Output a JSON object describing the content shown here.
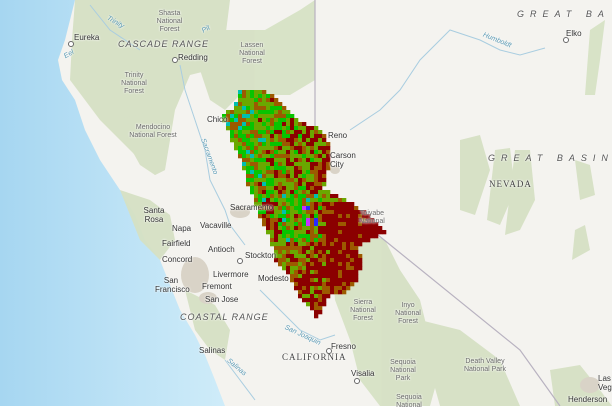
{
  "map": {
    "basemap": "topographic",
    "colors": {
      "ocean_deep": "#a9d8f2",
      "ocean_shallow": "#cdeaf8",
      "land": "#f4f3ef",
      "forest": "#d3dfc0",
      "state_line": "#b5b0bd",
      "river": "#a9cde0",
      "urban": "#d8d2c6"
    },
    "raster_palette": [
      "#8b0000",
      "#9c5a00",
      "#6aa800",
      "#08c400",
      "#00bfb0",
      "#1a80e0",
      "#2a2aff",
      "#c830ff"
    ],
    "labels": {
      "eureka": "Eureka",
      "redding": "Redding",
      "chico": "Chico",
      "reno": "Reno",
      "carson": "Carson City",
      "elko": "Elko",
      "santa_rosa": "Santa Rosa",
      "napa": "Napa",
      "vacaville": "Vacaville",
      "fairfield": "Fairfield",
      "sacramento": "Sacramento",
      "antioch": "Antioch",
      "concord": "Concord",
      "stockton": "Stockton",
      "san_francisco": "San Francisco",
      "livermore": "Livermore",
      "fremont": "Fremont",
      "modesto": "Modesto",
      "san_jose": "San Jose",
      "salinas": "Salinas",
      "fresno": "Fresno",
      "visalia": "Visalia",
      "henderson": "Henderson",
      "las_vegas": "Las Vegas",
      "shasta_nf": "Shasta National Forest",
      "lassen_nf": "Lassen National Forest",
      "trinity_nf": "Trinity National Forest",
      "mendocino_nf": "Mendocino National Forest",
      "toiyabe_nf": "Toiyabe National",
      "sierra_nf": "Sierra National Forest",
      "inyo_nf": "Inyo National Forest",
      "sequoia_np": "Sequoia National Park",
      "sequoia_nf": "Sequoia National",
      "death_valley": "Death Valley National Park",
      "cascade_range": "CASCADE RANGE",
      "coastal_range": "COASTAL RANGE",
      "great_basin_top": "GREAT BA",
      "great_basin": "GREAT BASIN",
      "california": "CALIFORNIA",
      "nevada": "NEVADA",
      "river_trinity": "Trinity",
      "river_pit": "Pit",
      "river_eel": "Eel",
      "river_sacramento": "Sacramento",
      "river_san_joaquin": "San Joaquin",
      "river_salinas": "Salinas",
      "river_humboldt": "Humboldt"
    }
  }
}
